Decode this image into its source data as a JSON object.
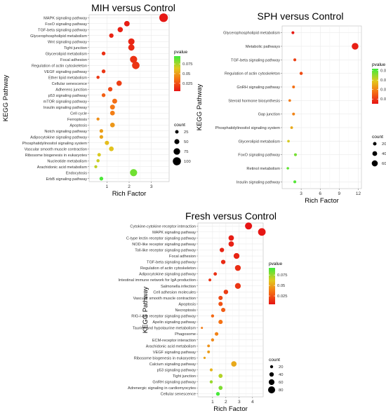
{
  "chart_data": [
    {
      "type": "scatter",
      "title": "MIH versus Control",
      "xlabel": "Rich Factor",
      "ylabel": "KEGG Pathway",
      "xlim": [
        0.2,
        3.8
      ],
      "xticks": [
        1,
        2,
        3
      ],
      "color_legend": {
        "title": "pvalue",
        "min": 0.005,
        "max": 0.095,
        "ticks": [
          0.075,
          0.05,
          0.025
        ]
      },
      "size_legend": {
        "title": "count",
        "values": [
          25,
          50,
          75,
          100
        ],
        "range": [
          5,
          110
        ]
      },
      "categories": [
        "MAPK signaling pathway",
        "FoxO signaling pathway",
        "TGF-beta signaling pathway",
        "Glycerophospholipid metabolism",
        "Wnt signaling pathway",
        "Tight junction",
        "Glycerolipid metabolism",
        "Focal adhesion",
        "Regulation of actin cytoskeleton",
        "VEGF signaling pathway",
        "Ether lipid metabolism",
        "Cellular senescence",
        "Adherens junction",
        "p53 signaling pathway",
        "mTOR signaling pathway",
        "Insulin signaling pathway",
        "Cell cycle",
        "Ferroptosis",
        "Apoptosis",
        "Notch signaling pathway",
        "Adipocytokine signaling pathway",
        "Phosphatidylinositol signaling system",
        "Vascular smooth muscle contraction",
        "Ribosome biogenesis in eukaryotes",
        "Nucleotide metabolism",
        "Arachidonic acid metabolism",
        "Endocytosis",
        "ErbB signaling pathway"
      ],
      "points": [
        {
          "x": 3.55,
          "count": 108,
          "p": 0.006
        },
        {
          "x": 1.9,
          "count": 58,
          "p": 0.008
        },
        {
          "x": 1.6,
          "count": 55,
          "p": 0.009
        },
        {
          "x": 1.2,
          "count": 40,
          "p": 0.01
        },
        {
          "x": 2.1,
          "count": 72,
          "p": 0.011
        },
        {
          "x": 2.1,
          "count": 70,
          "p": 0.012
        },
        {
          "x": 0.85,
          "count": 30,
          "p": 0.014
        },
        {
          "x": 2.2,
          "count": 85,
          "p": 0.015
        },
        {
          "x": 2.3,
          "count": 90,
          "p": 0.016
        },
        {
          "x": 0.85,
          "count": 30,
          "p": 0.016
        },
        {
          "x": 0.6,
          "count": 20,
          "p": 0.017
        },
        {
          "x": 1.55,
          "count": 55,
          "p": 0.019
        },
        {
          "x": 1.15,
          "count": 40,
          "p": 0.022
        },
        {
          "x": 0.85,
          "count": 30,
          "p": 0.03
        },
        {
          "x": 1.35,
          "count": 48,
          "p": 0.035
        },
        {
          "x": 1.25,
          "count": 48,
          "p": 0.038
        },
        {
          "x": 1.25,
          "count": 45,
          "p": 0.04
        },
        {
          "x": 0.6,
          "count": 18,
          "p": 0.045
        },
        {
          "x": 1.25,
          "count": 45,
          "p": 0.048
        },
        {
          "x": 0.75,
          "count": 28,
          "p": 0.05
        },
        {
          "x": 0.75,
          "count": 28,
          "p": 0.052
        },
        {
          "x": 1.0,
          "count": 38,
          "p": 0.06
        },
        {
          "x": 1.2,
          "count": 45,
          "p": 0.062
        },
        {
          "x": 0.65,
          "count": 25,
          "p": 0.065
        },
        {
          "x": 0.6,
          "count": 20,
          "p": 0.068
        },
        {
          "x": 0.5,
          "count": 18,
          "p": 0.07
        },
        {
          "x": 2.2,
          "count": 85,
          "p": 0.085
        },
        {
          "x": 0.75,
          "count": 30,
          "p": 0.092
        }
      ]
    },
    {
      "type": "scatter",
      "title": "SPH versus Control",
      "xlabel": "Rich Factor",
      "ylabel": "KEGG Pathway",
      "xlim": [
        0,
        12.5
      ],
      "xticks": [
        3,
        6,
        9,
        12
      ],
      "color_legend": {
        "title": "pvalue",
        "min": 0.01,
        "max": 0.084,
        "ticks": [
          0.08,
          0.06,
          0.04,
          0.02
        ]
      },
      "size_legend": {
        "title": "count",
        "values": [
          20,
          40,
          60
        ],
        "range": [
          5,
          75
        ]
      },
      "categories": [
        "Glycerophospholipid metabolism",
        "Metabolic pathways",
        "TGF-beta signaling pathway",
        "Regulation of actin cytoskeleton",
        "GnRH signaling pathway",
        "Steroid hormone biosynthesis",
        "Gap junction",
        "Phosphatidylinositol signaling system",
        "Glycerolipid metabolism",
        "FoxO signaling pathway",
        "Retinol metabolism",
        "Insulin signaling pathway"
      ],
      "points": [
        {
          "x": 1.7,
          "count": 10,
          "p": 0.012
        },
        {
          "x": 11.5,
          "count": 70,
          "p": 0.013
        },
        {
          "x": 2.0,
          "count": 10,
          "p": 0.022
        },
        {
          "x": 3.0,
          "count": 15,
          "p": 0.025
        },
        {
          "x": 1.8,
          "count": 9,
          "p": 0.035
        },
        {
          "x": 1.2,
          "count": 6,
          "p": 0.038
        },
        {
          "x": 1.8,
          "count": 9,
          "p": 0.04
        },
        {
          "x": 1.5,
          "count": 8,
          "p": 0.05
        },
        {
          "x": 1.0,
          "count": 6,
          "p": 0.06
        },
        {
          "x": 2.1,
          "count": 10,
          "p": 0.075
        },
        {
          "x": 0.9,
          "count": 5,
          "p": 0.078
        },
        {
          "x": 2.0,
          "count": 10,
          "p": 0.08
        }
      ]
    },
    {
      "type": "scatter",
      "title": "Fresh versus Control",
      "xlabel": "Rich Factor",
      "ylabel": "KEGG Pathway",
      "xlim": [
        -0.1,
        4.8
      ],
      "xticks": [
        1,
        2,
        3,
        4
      ],
      "color_legend": {
        "title": "pvalue",
        "min": 0.005,
        "max": 0.092,
        "ticks": [
          0.075,
          0.05,
          0.025
        ]
      },
      "size_legend": {
        "title": "count",
        "values": [
          20,
          40,
          60,
          80
        ],
        "range": [
          3,
          90
        ]
      },
      "categories": [
        "Cytokine-cytokine receptor interaction",
        "MAPK signaling pathway",
        "C-type lectin receptor signaling pathway",
        "NOD-like receptor signaling pathway",
        "Toll-like receptor signaling pathway",
        "Focal adhesion",
        "TGF-beta signaling pathway",
        "Regulation of actin cytoskeleton",
        "Adipocytokine signaling pathway",
        "Intestinal immune network for IgA production",
        "Salmonella infection",
        "Cell adhesion molecules",
        "Vascular smooth muscle contraction",
        "Apoptosis",
        "Necroptosis",
        "RIG-I-like receptor signaling pathway",
        "Apelin signaling pathway",
        "Taurine and hypotaurine metabolism",
        "Phagosome",
        "ECM-receptor interaction",
        "Arachidonic acid metabolism",
        "VEGF signaling pathway",
        "Ribosome biogenesis in eukaryotes",
        "Calcium signaling pathway",
        "p53 signaling pathway",
        "Tight junction",
        "GnRH signaling pathway",
        "Adrenergic signaling in cardiomyocytes",
        "Cellular senescence"
      ],
      "points": [
        {
          "x": 3.7,
          "count": 80,
          "p": 0.005
        },
        {
          "x": 4.7,
          "count": 88,
          "p": 0.006
        },
        {
          "x": 2.4,
          "count": 55,
          "p": 0.008
        },
        {
          "x": 2.4,
          "count": 55,
          "p": 0.009
        },
        {
          "x": 1.7,
          "count": 40,
          "p": 0.01
        },
        {
          "x": 2.8,
          "count": 62,
          "p": 0.01
        },
        {
          "x": 1.8,
          "count": 40,
          "p": 0.012
        },
        {
          "x": 2.9,
          "count": 62,
          "p": 0.013
        },
        {
          "x": 1.2,
          "count": 25,
          "p": 0.014
        },
        {
          "x": 0.8,
          "count": 15,
          "p": 0.015
        },
        {
          "x": 2.9,
          "count": 62,
          "p": 0.016
        },
        {
          "x": 2.0,
          "count": 42,
          "p": 0.018
        },
        {
          "x": 1.6,
          "count": 38,
          "p": 0.022
        },
        {
          "x": 1.6,
          "count": 38,
          "p": 0.025
        },
        {
          "x": 1.8,
          "count": 38,
          "p": 0.028
        },
        {
          "x": 1.0,
          "count": 20,
          "p": 0.032
        },
        {
          "x": 1.6,
          "count": 38,
          "p": 0.035
        },
        {
          "x": 0.2,
          "count": 5,
          "p": 0.038
        },
        {
          "x": 1.3,
          "count": 28,
          "p": 0.04
        },
        {
          "x": 1.0,
          "count": 20,
          "p": 0.042
        },
        {
          "x": 0.7,
          "count": 15,
          "p": 0.045
        },
        {
          "x": 0.7,
          "count": 15,
          "p": 0.048
        },
        {
          "x": 0.4,
          "count": 8,
          "p": 0.05
        },
        {
          "x": 2.6,
          "count": 55,
          "p": 0.052
        },
        {
          "x": 0.9,
          "count": 18,
          "p": 0.055
        },
        {
          "x": 1.6,
          "count": 35,
          "p": 0.07
        },
        {
          "x": 0.9,
          "count": 20,
          "p": 0.075
        },
        {
          "x": 1.6,
          "count": 35,
          "p": 0.08
        },
        {
          "x": 1.4,
          "count": 30,
          "p": 0.09
        }
      ]
    }
  ]
}
